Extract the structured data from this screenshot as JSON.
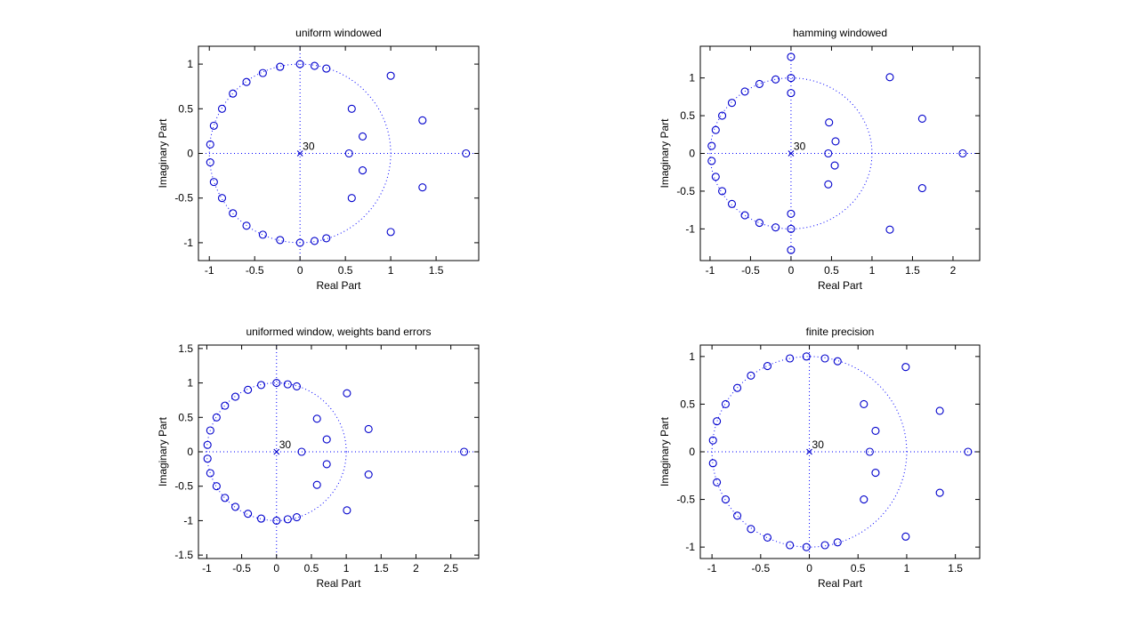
{
  "figure": {
    "background": "#ffffff",
    "marker_color": "#0000cc",
    "guide_color": "#0000ff"
  },
  "chart_data": [
    {
      "type": "scatter",
      "title": "uniform windowed",
      "xlabel": "Real Part",
      "ylabel": "Imaginary Part",
      "xlim": [
        -1.12,
        1.97
      ],
      "ylim": [
        -1.2,
        1.2
      ],
      "xticks": [
        -1,
        -0.5,
        0,
        0.5,
        1,
        1.5
      ],
      "yticks": [
        -1,
        -0.5,
        0,
        0.5,
        1
      ],
      "grid": false,
      "unit_circle": true,
      "pole": {
        "x": 0,
        "y": 0,
        "label": "30"
      },
      "zeros": {
        "x": [
          0,
          0.16,
          0.29,
          -0.22,
          -0.41,
          -0.59,
          -0.74,
          -0.86,
          -0.95,
          -0.99,
          -0.99,
          -0.95,
          -0.86,
          -0.74,
          -0.59,
          -0.41,
          -0.22,
          0,
          0.16,
          0.29,
          1.0,
          1.0,
          0.57,
          0.57,
          0.69,
          0.69,
          0.54,
          1.35,
          1.35,
          1.83
        ],
        "y": [
          1.0,
          0.98,
          0.95,
          0.97,
          0.9,
          0.8,
          0.67,
          0.5,
          0.31,
          0.1,
          -0.1,
          -0.32,
          -0.5,
          -0.67,
          -0.81,
          -0.91,
          -0.97,
          -1.0,
          -0.98,
          -0.95,
          0.87,
          -0.88,
          0.5,
          -0.5,
          0.19,
          -0.19,
          0,
          0.37,
          -0.38,
          0
        ]
      }
    },
    {
      "type": "scatter",
      "title": "hamming windowed",
      "xlabel": "Real Part",
      "ylabel": "Imaginary Part",
      "xlim": [
        -1.12,
        2.33
      ],
      "ylim": [
        -1.42,
        1.42
      ],
      "xticks": [
        -1,
        -0.5,
        0,
        0.5,
        1,
        1.5,
        2
      ],
      "yticks": [
        -1,
        -0.5,
        0,
        0.5,
        1
      ],
      "grid": false,
      "unit_circle": true,
      "pole": {
        "x": 0,
        "y": 0,
        "label": "30"
      },
      "zeros": {
        "x": [
          0,
          0,
          0,
          0,
          0,
          0,
          -0.19,
          -0.39,
          -0.57,
          -0.73,
          -0.85,
          -0.93,
          -0.98,
          -0.98,
          -0.93,
          -0.85,
          -0.73,
          -0.57,
          -0.39,
          -0.19,
          0.47,
          0.55,
          0.46,
          0.54,
          0.46,
          1.22,
          1.22,
          1.62,
          1.62,
          2.12
        ],
        "y": [
          1.28,
          1.0,
          0.8,
          -0.8,
          -1.0,
          -1.28,
          0.98,
          0.92,
          0.82,
          0.67,
          0.5,
          0.31,
          0.1,
          -0.1,
          -0.31,
          -0.5,
          -0.67,
          -0.82,
          -0.92,
          -0.98,
          0.41,
          0.16,
          0,
          -0.16,
          -0.41,
          1.01,
          -1.01,
          0.46,
          -0.46,
          0
        ]
      }
    },
    {
      "type": "scatter",
      "title": "uniformed window, weights band errors",
      "xlabel": "Real Part",
      "ylabel": "Imaginary Part",
      "xlim": [
        -1.12,
        2.9
      ],
      "ylim": [
        -1.55,
        1.55
      ],
      "xticks": [
        -1,
        -0.5,
        0,
        0.5,
        1,
        1.5,
        2,
        2.5
      ],
      "yticks": [
        -1.5,
        -1,
        -0.5,
        0,
        0.5,
        1,
        1.5
      ],
      "grid": false,
      "unit_circle": true,
      "pole": {
        "x": 0,
        "y": 0,
        "label": "30"
      },
      "zeros": {
        "x": [
          0,
          0.16,
          0.29,
          -0.22,
          -0.41,
          -0.59,
          -0.74,
          -0.86,
          -0.95,
          -0.99,
          -0.99,
          -0.95,
          -0.86,
          -0.74,
          -0.59,
          -0.41,
          -0.22,
          0,
          0.16,
          0.29,
          1.01,
          1.01,
          0.58,
          0.58,
          0.72,
          0.72,
          0.36,
          1.32,
          1.32,
          2.69
        ],
        "y": [
          1.0,
          0.98,
          0.95,
          0.97,
          0.9,
          0.8,
          0.67,
          0.5,
          0.31,
          0.1,
          -0.1,
          -0.31,
          -0.5,
          -0.67,
          -0.8,
          -0.9,
          -0.97,
          -1.0,
          -0.98,
          -0.95,
          0.85,
          -0.85,
          0.48,
          -0.48,
          0.18,
          -0.18,
          0,
          0.33,
          -0.33,
          0
        ]
      }
    },
    {
      "type": "scatter",
      "title": "finite precision",
      "xlabel": "Real Part",
      "ylabel": "Imaginary Part",
      "xlim": [
        -1.12,
        1.75
      ],
      "ylim": [
        -1.12,
        1.12
      ],
      "xticks": [
        -1,
        -0.5,
        0,
        0.5,
        1,
        1.5
      ],
      "yticks": [
        -1,
        -0.5,
        0,
        0.5,
        1
      ],
      "grid": false,
      "unit_circle": true,
      "pole": {
        "x": 0,
        "y": 0,
        "label": "30"
      },
      "zeros": {
        "x": [
          -0.03,
          0.16,
          0.29,
          -0.2,
          -0.43,
          -0.6,
          -0.74,
          -0.86,
          -0.95,
          -0.99,
          -0.99,
          -0.95,
          -0.86,
          -0.74,
          -0.6,
          -0.43,
          -0.2,
          -0.03,
          0.16,
          0.29,
          0.99,
          0.99,
          0.56,
          0.56,
          0.68,
          0.68,
          0.62,
          1.34,
          1.34,
          1.63
        ],
        "y": [
          1.0,
          0.98,
          0.95,
          0.98,
          0.9,
          0.8,
          0.67,
          0.5,
          0.32,
          0.12,
          -0.12,
          -0.32,
          -0.5,
          -0.67,
          -0.81,
          -0.9,
          -0.98,
          -1.0,
          -0.98,
          -0.95,
          0.89,
          -0.89,
          0.5,
          -0.5,
          0.22,
          -0.22,
          0,
          0.43,
          -0.43,
          0
        ]
      }
    }
  ]
}
